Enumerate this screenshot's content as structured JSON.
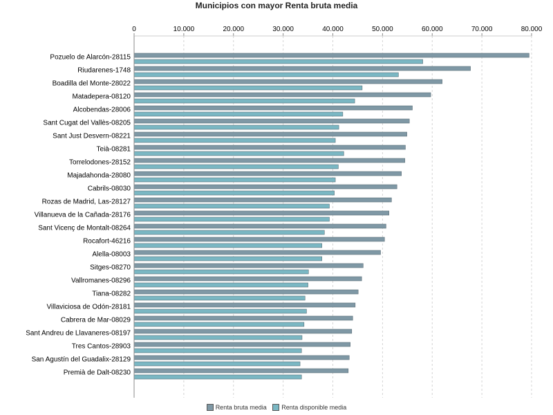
{
  "colors": {
    "series1": "#7f98a5",
    "series2": "#7ab7c3",
    "grid": "#d4d4d4",
    "axis": "#888888",
    "bar_stroke": "#5d6f78"
  },
  "chart_data": {
    "type": "bar",
    "orientation": "horizontal",
    "title": "Municipios con mayor Renta bruta media",
    "xlabel": "",
    "ylabel": "",
    "xlim": [
      0,
      80000
    ],
    "ticks": [
      0,
      10000,
      20000,
      30000,
      40000,
      50000,
      60000,
      70000,
      80000
    ],
    "tick_labels": [
      "0",
      "10.000",
      "20.000",
      "30.000",
      "40.000",
      "50.000",
      "60.000",
      "70.000",
      "80.000"
    ],
    "grid": true,
    "legend_position": "bottom",
    "categories": [
      "Pozuelo de Alarcón-28115",
      "Riudarenes-1748",
      "Boadilla del Monte-28022",
      "Matadepera-08120",
      "Alcobendas-28006",
      "Sant Cugat del Vallès-08205",
      "Sant Just Desvern-08221",
      "Teià-08281",
      "Torrelodones-28152",
      "Majadahonda-28080",
      "Cabrils-08030",
      "Rozas de Madrid, Las-28127",
      "Villanueva de la Cañada-28176",
      "Sant Vicenç de Montalt-08264",
      "Rocafort-46216",
      "Alella-08003",
      "Sitges-08270",
      "Vallromanes-08296",
      "Tiana-08282",
      "Villaviciosa de Odón-28181",
      "Cabrera de Mar-08029",
      "Sant Andreu de Llavaneres-08197",
      "Tres Cantos-28903",
      "San Agustín del Guadalix-28129",
      "Premià de Dalt-08230"
    ],
    "series": [
      {
        "name": "Renta bruta media",
        "values": [
          79500,
          67700,
          62000,
          59700,
          56000,
          55400,
          54900,
          54600,
          54500,
          53800,
          52900,
          51800,
          51300,
          50700,
          50400,
          49600,
          46100,
          45800,
          45100,
          44500,
          44000,
          43800,
          43500,
          43300,
          43100
        ]
      },
      {
        "name": "Renta disponible media",
        "values": [
          58100,
          53200,
          45900,
          44400,
          42000,
          41200,
          40500,
          42200,
          41100,
          40500,
          40300,
          39300,
          39300,
          38300,
          37800,
          37800,
          35100,
          35000,
          34400,
          34700,
          34200,
          33800,
          33700,
          33400,
          33700
        ]
      }
    ]
  }
}
